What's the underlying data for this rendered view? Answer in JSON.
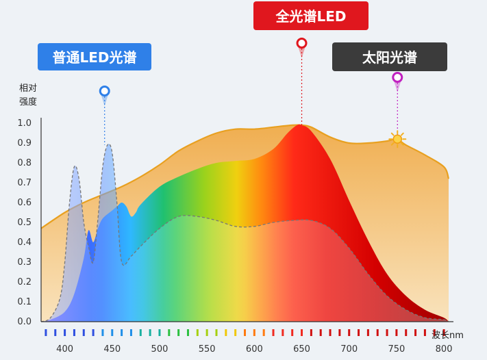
{
  "chart_data": {
    "type": "area",
    "ylabel_line1": "相对",
    "ylabel_line2": "强度",
    "xlabel": "波长nm",
    "xlim": [
      375,
      805
    ],
    "ylim": [
      0,
      1.0
    ],
    "yticks": [
      "0.0",
      "0.1",
      "0.2",
      "0.3",
      "0.4",
      "0.5",
      "0.6",
      "0.7",
      "0.8",
      "0.9",
      "1.0"
    ],
    "xticks": [
      400,
      450,
      500,
      550,
      600,
      650,
      700,
      750,
      800
    ],
    "grid": false,
    "series": [
      {
        "name": "太阳光谱",
        "color": "#e8a020",
        "x": [
          375,
          400,
          420,
          440,
          460,
          480,
          500,
          520,
          540,
          560,
          580,
          600,
          620,
          640,
          650,
          660,
          680,
          700,
          720,
          740,
          750,
          760,
          780,
          800,
          805
        ],
        "y": [
          0.47,
          0.55,
          0.6,
          0.64,
          0.68,
          0.73,
          0.79,
          0.86,
          0.91,
          0.95,
          0.97,
          0.97,
          0.98,
          0.99,
          0.99,
          0.98,
          0.93,
          0.9,
          0.9,
          0.91,
          0.92,
          0.89,
          0.84,
          0.78,
          0.72
        ]
      },
      {
        "name": "全光谱LED",
        "color": "#e02020",
        "x": [
          375,
          385,
          400,
          410,
          420,
          425,
          430,
          435,
          440,
          450,
          455,
          460,
          465,
          470,
          475,
          480,
          500,
          520,
          540,
          560,
          580,
          600,
          620,
          635,
          645,
          650,
          660,
          680,
          700,
          720,
          740,
          760,
          780,
          800,
          805
        ],
        "y": [
          0.0,
          0.01,
          0.05,
          0.14,
          0.32,
          0.46,
          0.4,
          0.47,
          0.52,
          0.56,
          0.58,
          0.6,
          0.58,
          0.53,
          0.55,
          0.59,
          0.68,
          0.73,
          0.77,
          0.8,
          0.81,
          0.82,
          0.87,
          0.95,
          0.99,
          0.99,
          0.96,
          0.82,
          0.61,
          0.41,
          0.24,
          0.13,
          0.06,
          0.02,
          0.0
        ]
      },
      {
        "name": "普通LED光谱",
        "color": "#2f7fe0",
        "x": [
          375,
          385,
          395,
          400,
          405,
          410,
          415,
          420,
          425,
          430,
          435,
          440,
          445,
          450,
          455,
          460,
          470,
          480,
          500,
          520,
          540,
          560,
          580,
          600,
          620,
          640,
          660,
          680,
          700,
          720,
          740,
          760,
          780,
          800,
          805
        ],
        "y": [
          0.0,
          0.02,
          0.12,
          0.3,
          0.6,
          0.78,
          0.72,
          0.5,
          0.38,
          0.3,
          0.52,
          0.78,
          0.89,
          0.85,
          0.6,
          0.3,
          0.33,
          0.38,
          0.47,
          0.53,
          0.53,
          0.51,
          0.48,
          0.48,
          0.5,
          0.51,
          0.51,
          0.47,
          0.37,
          0.24,
          0.13,
          0.06,
          0.02,
          0.01,
          0.0
        ]
      }
    ],
    "markers": [
      {
        "name": "普通LED光谱",
        "x": 442,
        "y": 0.89
      },
      {
        "name": "全光谱LED",
        "x": 650,
        "y": 0.99
      },
      {
        "name": "太阳光谱",
        "x": 751,
        "y": 0.92
      }
    ]
  },
  "badges": {
    "normal_led": {
      "text": "普通LED光谱",
      "color": "#2f80e8"
    },
    "full_spectrum": {
      "text": "全光谱LED",
      "color": "#e0171e"
    },
    "sunlight": {
      "text": "太阳光谱",
      "color": "#3b3b3b"
    }
  },
  "colors": {
    "background": "#eef2f6",
    "sun_fill_top": "#f0ae50",
    "sun_fill_bottom": "#f8dfb3",
    "normal_marker": "#2f80e8",
    "full_marker": "#e0171e",
    "sun_marker": "#c020c0"
  }
}
